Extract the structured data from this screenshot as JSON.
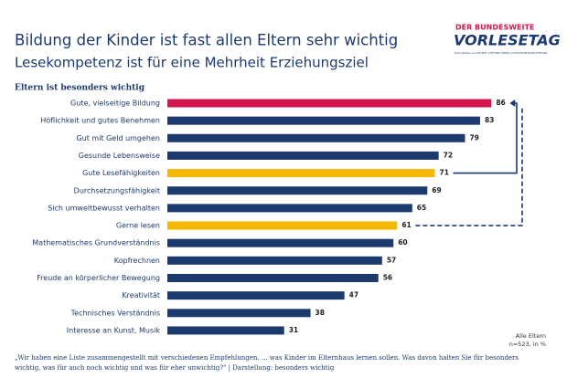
{
  "chart_data": {
    "type": "bar",
    "orientation": "horizontal",
    "title": "Bildung der Kinder ist fast allen Eltern sehr wichtig",
    "subtitle": "Lesekompetenz ist für eine Mehrheit Erziehungsziel",
    "section_label": "Eltern ist besonders wichtig",
    "categories": [
      "Gute, vielseitige Bildung",
      "Höflichkeit und gutes Benehmen",
      "Gut mit Geld umgehen",
      "Gesunde Lebensweise",
      "Gute Lesefähigkeiten",
      "Durchsetzungsfähigkeit",
      "Sich umweltbewusst verhalten",
      "Gerne lesen",
      "Mathematisches Grundverständnis",
      "Kopfrechnen",
      "Freude an körperlicher Bewegung",
      "Kreativität",
      "Technisches Verständnis",
      "Interesse an Kunst, Musik"
    ],
    "values": [
      86,
      83,
      79,
      72,
      71,
      69,
      65,
      61,
      60,
      57,
      56,
      47,
      38,
      31
    ],
    "colors": [
      "#d3164e",
      "#1c3a6e",
      "#1c3a6e",
      "#1c3a6e",
      "#f5b700",
      "#1c3a6e",
      "#1c3a6e",
      "#f5b700",
      "#1c3a6e",
      "#1c3a6e",
      "#1c3a6e",
      "#1c3a6e",
      "#1c3a6e",
      "#1c3a6e"
    ],
    "sample_note": [
      "Alle Eltern",
      "n=523, in %"
    ],
    "note": [
      "„Wir haben eine Liste zusammengestellt mit verschiedenen Empfehlungen. ... was Kinder im Elternhaus lernen sollen. Was davon halten Sie für besonders",
      "wichtig, was für auch noch wichtig und was für eher unwichtig?\" | Darstellung: besonders wichtig"
    ],
    "logo": {
      "top": "DER BUNDESWEITE",
      "main": "VORLESETAG",
      "small": "Eine Initiative von DIE ZEIT, STIFTUNG LESEN und DEUTSCHE BAHN STIFTUNG"
    }
  }
}
